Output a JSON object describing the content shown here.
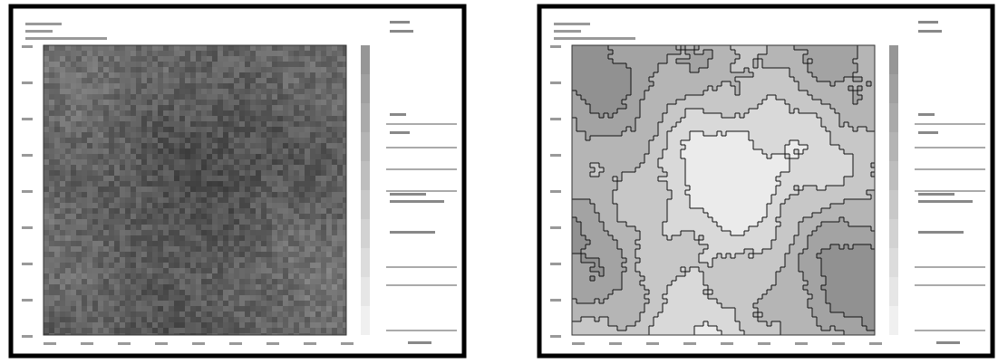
{
  "panels": [
    {
      "style": "texture"
    },
    {
      "style": "contour"
    }
  ]
}
